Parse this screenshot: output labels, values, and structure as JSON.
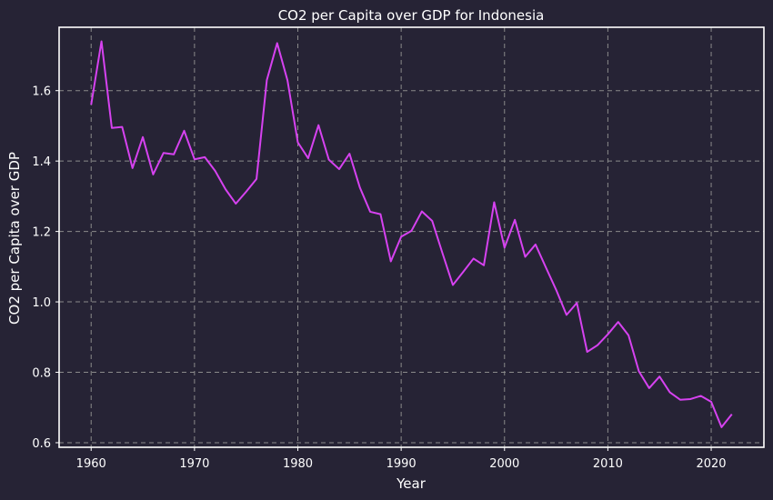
{
  "chart_data": {
    "type": "line",
    "title": "CO2 per Capita over GDP for Indonesia",
    "xlabel": "Year",
    "ylabel": "CO2 per Capita over GDP",
    "xlim": [
      1956.9,
      2025.1
    ],
    "ylim": [
      0.587,
      1.78
    ],
    "xticks": [
      1960,
      1970,
      1980,
      1990,
      2000,
      2010,
      2020
    ],
    "yticks": [
      0.6,
      0.8,
      1.0,
      1.2,
      1.4,
      1.6
    ],
    "ytick_labels": [
      "0.6",
      "0.8",
      "1.0",
      "1.2",
      "1.4",
      "1.6"
    ],
    "grid": true,
    "grid_style": "dashed",
    "colors": {
      "background": "#262335",
      "line": "#d642f0",
      "grid": "#8a8a8a",
      "text": "#ffffff",
      "frame": "#ffffff"
    },
    "series": [
      {
        "x": [
          1960,
          1961,
          1962,
          1963,
          1964,
          1965,
          1966,
          1967,
          1968,
          1969,
          1970,
          1971,
          1972,
          1973,
          1974,
          1975,
          1976,
          1977,
          1978,
          1979,
          1980,
          1981,
          1982,
          1983,
          1984,
          1985,
          1986,
          1987,
          1988,
          1989,
          1990,
          1991,
          1992,
          1993,
          1994,
          1995,
          1996,
          1997,
          1998,
          1999,
          2000,
          2001,
          2002,
          2003,
          2004,
          2005,
          2006,
          2007,
          2008,
          2009,
          2010,
          2011,
          2012,
          2013,
          2014,
          2015,
          2016,
          2017,
          2018,
          2019,
          2020,
          2021,
          2022
        ],
        "values": [
          1.56,
          1.74,
          1.494,
          1.497,
          1.38,
          1.468,
          1.362,
          1.423,
          1.419,
          1.486,
          1.405,
          1.411,
          1.372,
          1.32,
          1.279,
          1.313,
          1.349,
          1.63,
          1.735,
          1.629,
          1.453,
          1.408,
          1.502,
          1.404,
          1.377,
          1.421,
          1.325,
          1.256,
          1.249,
          1.115,
          1.185,
          1.202,
          1.257,
          1.23,
          1.138,
          1.048,
          1.085,
          1.123,
          1.104,
          1.283,
          1.154,
          1.233,
          1.128,
          1.163,
          1.098,
          1.034,
          0.963,
          0.997,
          0.858,
          0.877,
          0.908,
          0.943,
          0.905,
          0.803,
          0.755,
          0.788,
          0.743,
          0.722,
          0.724,
          0.733,
          0.716,
          0.644,
          0.681
        ]
      }
    ]
  }
}
